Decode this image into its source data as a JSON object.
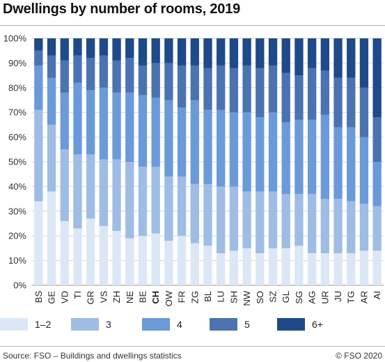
{
  "header": {
    "title": "Dwellings by number of rooms, 2019"
  },
  "footer": {
    "source": "Source: FSO – Buildings and dwellings statistics",
    "copyright": "© FSO 2020"
  },
  "chart_data": {
    "type": "bar",
    "stacked": true,
    "title": "Dwellings by number of rooms, 2019",
    "xlabel": "",
    "ylabel": "",
    "ylim": [
      0,
      100
    ],
    "y_ticks": [
      "0%",
      "10%",
      "20%",
      "30%",
      "40%",
      "50%",
      "60%",
      "70%",
      "80%",
      "90%",
      "100%"
    ],
    "grid": true,
    "legend_position": "bottom",
    "highlight_category": "CH",
    "categories": [
      "BS",
      "GE",
      "VD",
      "TI",
      "GR",
      "VS",
      "ZH",
      "NE",
      "BE",
      "CH",
      "OW",
      "FR",
      "ZG",
      "BL",
      "LU",
      "SH",
      "NW",
      "SO",
      "SZ",
      "GL",
      "SG",
      "AG",
      "UR",
      "JU",
      "TG",
      "AR",
      "AI"
    ],
    "series": [
      {
        "name": "1–2",
        "color": "#dce7f6",
        "values": [
          34,
          38,
          26,
          23,
          27,
          24,
          22,
          19,
          20,
          21,
          18,
          20,
          17,
          16,
          13,
          14,
          15,
          13,
          15,
          15,
          16,
          13,
          13,
          13,
          13,
          14,
          14
        ]
      },
      {
        "name": "3",
        "color": "#9fbde4",
        "values": [
          37,
          27,
          29,
          30,
          26,
          27,
          29,
          31,
          28,
          27,
          26,
          24,
          24,
          25,
          27,
          26,
          23,
          25,
          23,
          22,
          21,
          24,
          22,
          22,
          21,
          19,
          18
        ]
      },
      {
        "name": "4",
        "color": "#6a9bd8",
        "values": [
          18,
          19,
          23,
          29,
          26,
          29,
          27,
          28,
          29,
          28,
          31,
          28,
          34,
          30,
          31,
          30,
          32,
          30,
          32,
          29,
          30,
          30,
          34,
          29,
          30,
          27,
          18
        ]
      },
      {
        "name": "5",
        "color": "#4b73b1",
        "values": [
          6,
          9,
          13,
          11,
          13,
          13,
          13,
          14,
          12,
          14,
          15,
          17,
          14,
          17,
          18,
          18,
          19,
          20,
          19,
          20,
          18,
          21,
          18,
          20,
          20,
          20,
          18
        ]
      },
      {
        "name": "6+",
        "color": "#1e4a8a",
        "values": [
          5,
          7,
          9,
          7,
          8,
          7,
          9,
          8,
          11,
          10,
          10,
          11,
          11,
          12,
          11,
          12,
          11,
          12,
          11,
          14,
          15,
          12,
          13,
          16,
          16,
          20,
          32
        ]
      }
    ]
  }
}
